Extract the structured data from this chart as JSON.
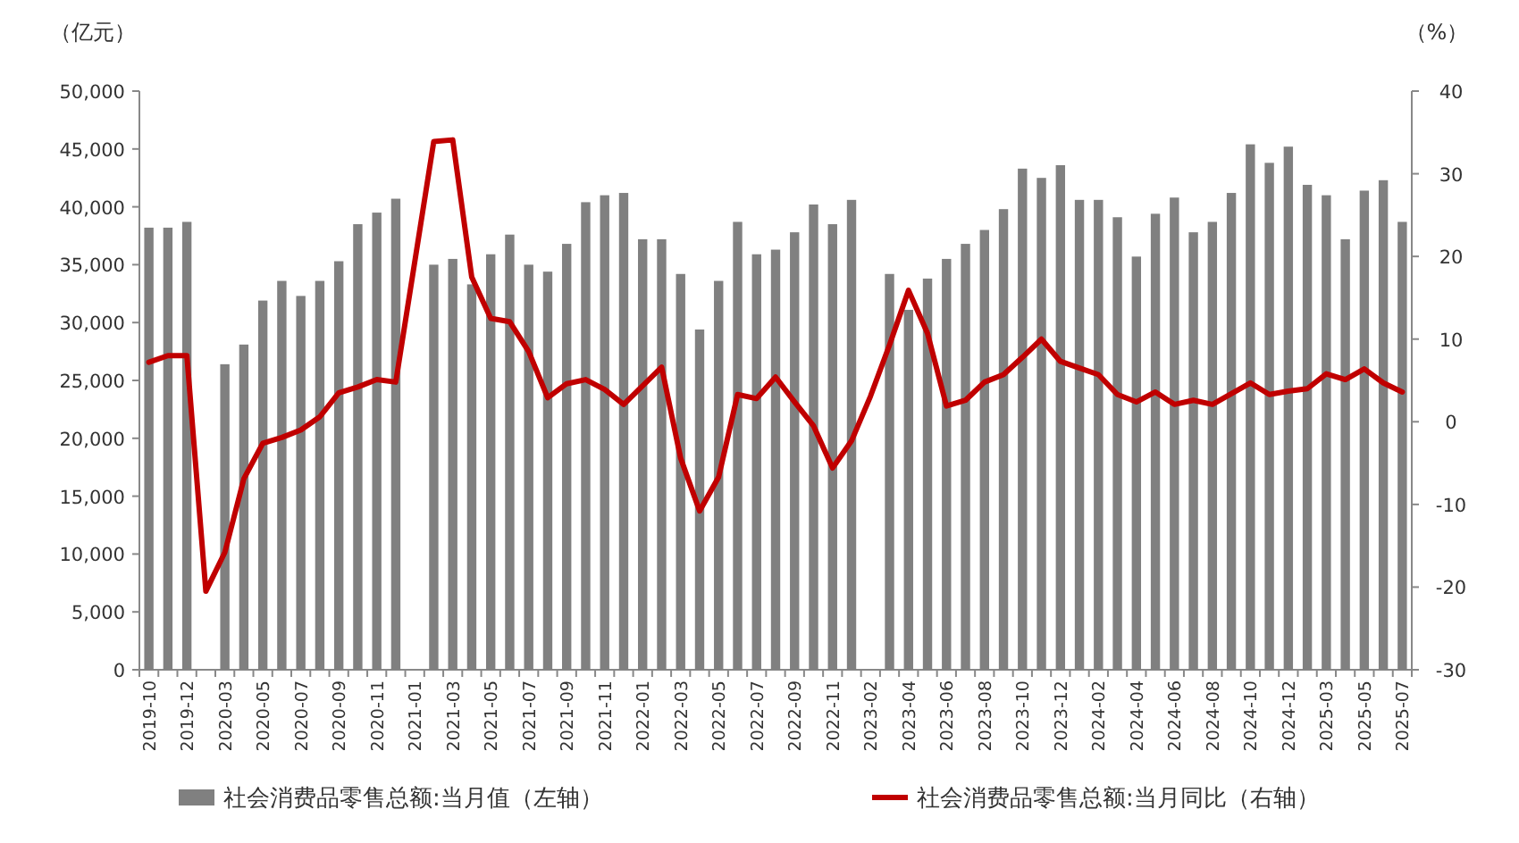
{
  "chart_data": {
    "type": "bar",
    "ylabel": "（亿元）",
    "y2label": "（%）",
    "legend": "bottom",
    "categories": [
      "2019-10",
      null,
      "2019-12",
      null,
      "2020-03",
      null,
      "2020-05",
      null,
      "2020-07",
      null,
      "2020-09",
      null,
      "2020-11",
      null,
      "2021-01",
      null,
      "2021-03",
      null,
      "2021-05",
      null,
      "2021-07",
      null,
      "2021-09",
      null,
      "2021-11",
      null,
      "2022-01",
      null,
      "2022-03",
      null,
      "2022-05",
      null,
      "2022-07",
      null,
      "2022-09",
      null,
      "2022-11",
      null,
      "2023-02",
      null,
      "2023-04",
      null,
      "2023-06",
      null,
      "2023-08",
      null,
      "2023-10",
      null,
      "2023-12",
      null,
      "2024-02",
      null,
      "2024-04",
      null,
      "2024-06",
      null,
      "2024-08",
      null,
      "2024-10",
      null,
      "2024-12",
      null,
      "2025-03",
      null,
      "2025-05",
      null,
      "2025-07"
    ],
    "ylim": [
      0,
      50000
    ],
    "yticks": [
      {
        "value": 0,
        "label": "0"
      },
      {
        "value": 5000,
        "label": "5,000"
      },
      {
        "value": 10000,
        "label": "10,000"
      },
      {
        "value": 15000,
        "label": "15,000"
      },
      {
        "value": 20000,
        "label": "20,000"
      },
      {
        "value": 25000,
        "label": "25,000"
      },
      {
        "value": 30000,
        "label": "30,000"
      },
      {
        "value": 35000,
        "label": "35,000"
      },
      {
        "value": 40000,
        "label": "40,000"
      },
      {
        "value": 45000,
        "label": "45,000"
      },
      {
        "value": 50000,
        "label": "50,000"
      }
    ],
    "y2lim": [
      -30,
      40
    ],
    "y2ticks": [
      -30,
      -20,
      -10,
      0,
      10,
      20,
      30,
      40
    ],
    "series": [
      {
        "name": "社会消费品零售总额:当月值（左轴）",
        "color": "#808080",
        "values": [
          38200,
          38200,
          38700,
          null,
          26400,
          28100,
          31900,
          33600,
          32300,
          33600,
          35300,
          38500,
          39500,
          40700,
          null,
          35000,
          35500,
          33300,
          35900,
          37600,
          35000,
          34400,
          36800,
          40400,
          41000,
          41200,
          37200,
          37200,
          34200,
          29400,
          33600,
          38700,
          35900,
          36300,
          37800,
          40200,
          38500,
          40600,
          null,
          34200,
          31100,
          33800,
          35500,
          36800,
          38000,
          39800,
          43300,
          42500,
          43600,
          40600,
          40600,
          39100,
          35700,
          39400,
          40800,
          37800,
          38700,
          41200,
          45400,
          43800,
          45200,
          41900,
          41000,
          37200,
          41400,
          42300,
          38700
        ]
      },
      {
        "name": "社会消费品零售总额:当月同比（右轴）",
        "type": "line",
        "axis": "y2",
        "color": "#c00000",
        "values": [
          7.2,
          8.0,
          8.0,
          -20.5,
          -15.8,
          -6.9,
          -2.6,
          -1.9,
          -1.0,
          0.6,
          3.5,
          4.2,
          5.1,
          4.8,
          null,
          33.9,
          34.1,
          17.5,
          12.5,
          12.1,
          8.5,
          2.9,
          4.6,
          5.1,
          3.9,
          2.1,
          null,
          6.6,
          -4.4,
          -10.8,
          -6.7,
          3.3,
          2.8,
          5.4,
          2.4,
          -0.5,
          -5.6,
          -2.3,
          3.1,
          9.3,
          15.9,
          10.7,
          1.9,
          2.6,
          4.8,
          5.7,
          7.8,
          10.0,
          7.3,
          6.5,
          5.7,
          3.3,
          2.4,
          3.6,
          2.1,
          2.6,
          2.1,
          3.4,
          4.7,
          3.3,
          3.7,
          4.0,
          5.8,
          5.1,
          6.4,
          4.7,
          3.6
        ]
      }
    ]
  }
}
